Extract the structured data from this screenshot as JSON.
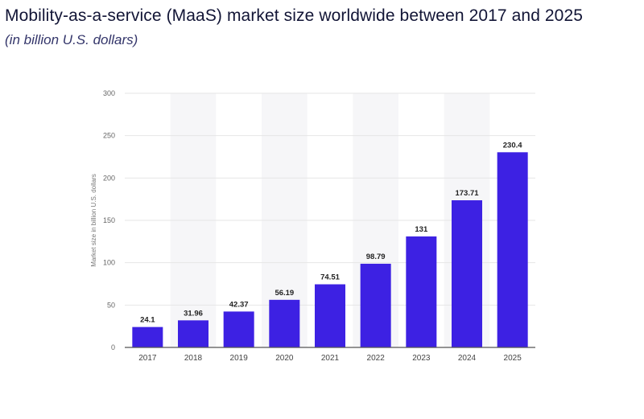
{
  "title": "Mobility-as-a-service (MaaS) market size worldwide between 2017 and 2025",
  "subtitle": "(in billion U.S. dollars)",
  "chart_data": {
    "type": "bar",
    "title": "Mobility-as-a-service (MaaS) market size worldwide between 2017 and 2025",
    "subtitle": "(in billion U.S. dollars)",
    "xlabel": "",
    "ylabel": "Market size in billion U.S. dollars",
    "categories": [
      "2017",
      "2018",
      "2019",
      "2020",
      "2021",
      "2022",
      "2023",
      "2024",
      "2025"
    ],
    "values": [
      24.1,
      31.96,
      42.37,
      56.19,
      74.51,
      98.79,
      131,
      173.71,
      230.4
    ],
    "data_labels": [
      "24.1",
      "31.96",
      "42.37",
      "56.19",
      "74.51",
      "98.79",
      "131",
      "173.71",
      "230.4"
    ],
    "ylim": [
      0,
      300
    ],
    "yticks": [
      0,
      50,
      100,
      150,
      200,
      250,
      300
    ],
    "grid": true,
    "bar_color": "#3d21e3"
  }
}
